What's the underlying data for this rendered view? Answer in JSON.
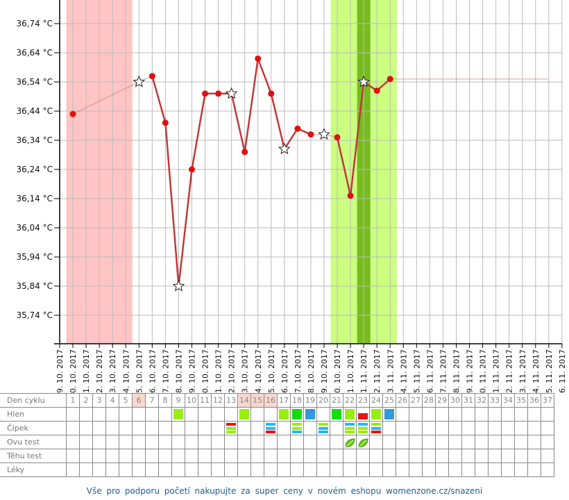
{
  "chart_data": {
    "type": "line",
    "ylabel": "",
    "xlabel": "",
    "ylim": [
      35.64,
      36.82
    ],
    "y_ticks": [
      "36,74 °C",
      "36,64 °C",
      "36,54 °C",
      "36,44 °C",
      "36,34 °C",
      "36,24 °C",
      "36,14 °C",
      "36,04 °C",
      "35,94 °C",
      "35,84 °C",
      "35,74 °C"
    ],
    "y_tick_values": [
      36.74,
      36.64,
      36.54,
      36.44,
      36.34,
      36.24,
      36.14,
      36.04,
      35.94,
      35.84,
      35.74
    ],
    "x_ticks": [
      "9. 10. 2017",
      "10. 10. 2017",
      "11. 10. 2017",
      "12. 10. 2017",
      "13. 10. 2017",
      "14. 10. 2017",
      "15. 10. 2017",
      "16. 10. 2017",
      "17. 10. 2017",
      "18. 10. 2017",
      "19. 10. 2017",
      "20. 10. 2017",
      "21. 10. 2017",
      "22. 10. 2017",
      "23. 10. 2017",
      "24. 10. 2017",
      "25. 10. 2017",
      "26. 10. 2017",
      "27. 10. 2017",
      "28. 10. 2017",
      "29. 10. 2017",
      "30. 10. 2017",
      "31. 10. 2017",
      "1. 11. 2017",
      "2. 11. 2017",
      "3. 11. 2017",
      "4. 11. 2017",
      "5. 11. 2017",
      "6. 11. 2017",
      "7. 11. 2017",
      "8. 11. 2017",
      "9. 11. 2017",
      "10. 11. 2017",
      "11. 11. 2017",
      "12. 11. 2017",
      "13. 11. 2017",
      "14. 11. 2017",
      "15. 11. 2017",
      "16. 11. 2017"
    ],
    "grid": true,
    "points": [
      {
        "day": 1,
        "date": "10. 10. 2017",
        "temp": 36.43,
        "marker": "dot"
      },
      {
        "day": 6,
        "date": "15. 10. 2017",
        "temp": 36.54,
        "marker": "star"
      },
      {
        "day": 7,
        "date": "16. 10. 2017",
        "temp": 36.56,
        "marker": "dot"
      },
      {
        "day": 8,
        "date": "17. 10. 2017",
        "temp": 36.4,
        "marker": "dot"
      },
      {
        "day": 9,
        "date": "18. 10. 2017",
        "temp": 35.84,
        "marker": "star"
      },
      {
        "day": 10,
        "date": "19. 10. 2017",
        "temp": 36.24,
        "marker": "dot"
      },
      {
        "day": 11,
        "date": "20. 10. 2017",
        "temp": 36.5,
        "marker": "dot"
      },
      {
        "day": 12,
        "date": "21. 10. 2017",
        "temp": 36.5,
        "marker": "dot"
      },
      {
        "day": 13,
        "date": "22. 10. 2017",
        "temp": 36.5,
        "marker": "star"
      },
      {
        "day": 14,
        "date": "23. 10. 2017",
        "temp": 36.3,
        "marker": "dot"
      },
      {
        "day": 15,
        "date": "24. 10. 2017",
        "temp": 36.62,
        "marker": "dot"
      },
      {
        "day": 16,
        "date": "25. 10. 2017",
        "temp": 36.5,
        "marker": "dot"
      },
      {
        "day": 17,
        "date": "26. 10. 2017",
        "temp": 36.31,
        "marker": "star"
      },
      {
        "day": 18,
        "date": "27. 10. 2017",
        "temp": 36.38,
        "marker": "dot"
      },
      {
        "day": 19,
        "date": "28. 10. 2017",
        "temp": 36.36,
        "marker": "dot"
      },
      {
        "day": 20,
        "date": "29. 10. 2017",
        "temp": 36.36,
        "marker": "star"
      },
      {
        "day": 21,
        "date": "30. 10. 2017",
        "temp": 36.35,
        "marker": "dot"
      },
      {
        "day": 22,
        "date": "31. 10. 2017",
        "temp": 36.15,
        "marker": "dot"
      },
      {
        "day": 23,
        "date": "1. 11. 2017",
        "temp": 36.54,
        "marker": "star"
      },
      {
        "day": 24,
        "date": "2. 11. 2017",
        "temp": 36.51,
        "marker": "dot"
      },
      {
        "day": 25,
        "date": "3. 11. 2017",
        "temp": 36.55,
        "marker": "dot"
      }
    ],
    "dotted_segments": [
      [
        1,
        6
      ],
      [
        6,
        7
      ],
      [
        19,
        20
      ],
      [
        20,
        21
      ]
    ],
    "coverline": {
      "temp": 36.55,
      "from_day": 25,
      "to_day": 37
    },
    "bands": [
      {
        "from_day": 1,
        "to_day": 5,
        "color": "#ffc4c4",
        "meaning": "menstruation"
      },
      {
        "from_day": 21,
        "to_day": 25,
        "color": "#ccff80",
        "meaning": "fertile"
      },
      {
        "from_day": 23,
        "to_day": 23,
        "color": "#77bb1e",
        "meaning": "ovulation"
      }
    ],
    "colors": {
      "line": "#c0393b",
      "point": "#dd1111",
      "coverline": "#d08080"
    }
  },
  "table": {
    "row_labels": [
      "Den cyklu",
      "Hlen",
      "Čípek",
      "Ovu test",
      "Těhu test",
      "Léky"
    ],
    "days": [
      "1",
      "2",
      "3",
      "4",
      "5",
      "6",
      "7",
      "8",
      "9",
      "10",
      "11",
      "12",
      "13",
      "14",
      "15",
      "16",
      "17",
      "18",
      "19",
      "20",
      "21",
      "22",
      "23",
      "24",
      "25",
      "26",
      "27",
      "28",
      "29",
      "30",
      "31",
      "32",
      "33",
      "34",
      "35",
      "36",
      "37"
    ],
    "highlighted_days": [
      6,
      14,
      15,
      16
    ],
    "hlen": {
      "9": "#99ee11",
      "14": "#99ee11",
      "17": "#99ee11",
      "18": "#11dd11",
      "19": "#3399dd",
      "21": "#11dd11",
      "22": "#99ee11",
      "23": "#ee1111",
      "24": "#99ee11",
      "25": "#3399dd"
    },
    "hlen_small": [
      23
    ],
    "cipek": {
      "13": [
        "#ee1111",
        "#99ee11",
        "#99ee11"
      ],
      "16": [
        "#22bbee",
        "#22bbee",
        "#ee1111"
      ],
      "18": [
        "#99ee11",
        "#99ee11",
        "#22bbee"
      ],
      "20": [
        "#99ee11",
        "#22bbee",
        "#22bbee"
      ],
      "22": [
        "#22bbee",
        "#99ee11",
        "#99ee11"
      ],
      "23": [
        "#22bbee",
        "#99ee11",
        "#99ee11"
      ],
      "24": [
        "#99ee11",
        "#22bbee",
        "#ee1111"
      ]
    },
    "ovu_test_positive_days": [
      22,
      23
    ],
    "ovu_icon": "leaf-icon"
  },
  "footer": {
    "link_text": "Vše pro podporu početí nakupujte za super ceny v novém eshopu womenzone.cz/snazeni"
  }
}
